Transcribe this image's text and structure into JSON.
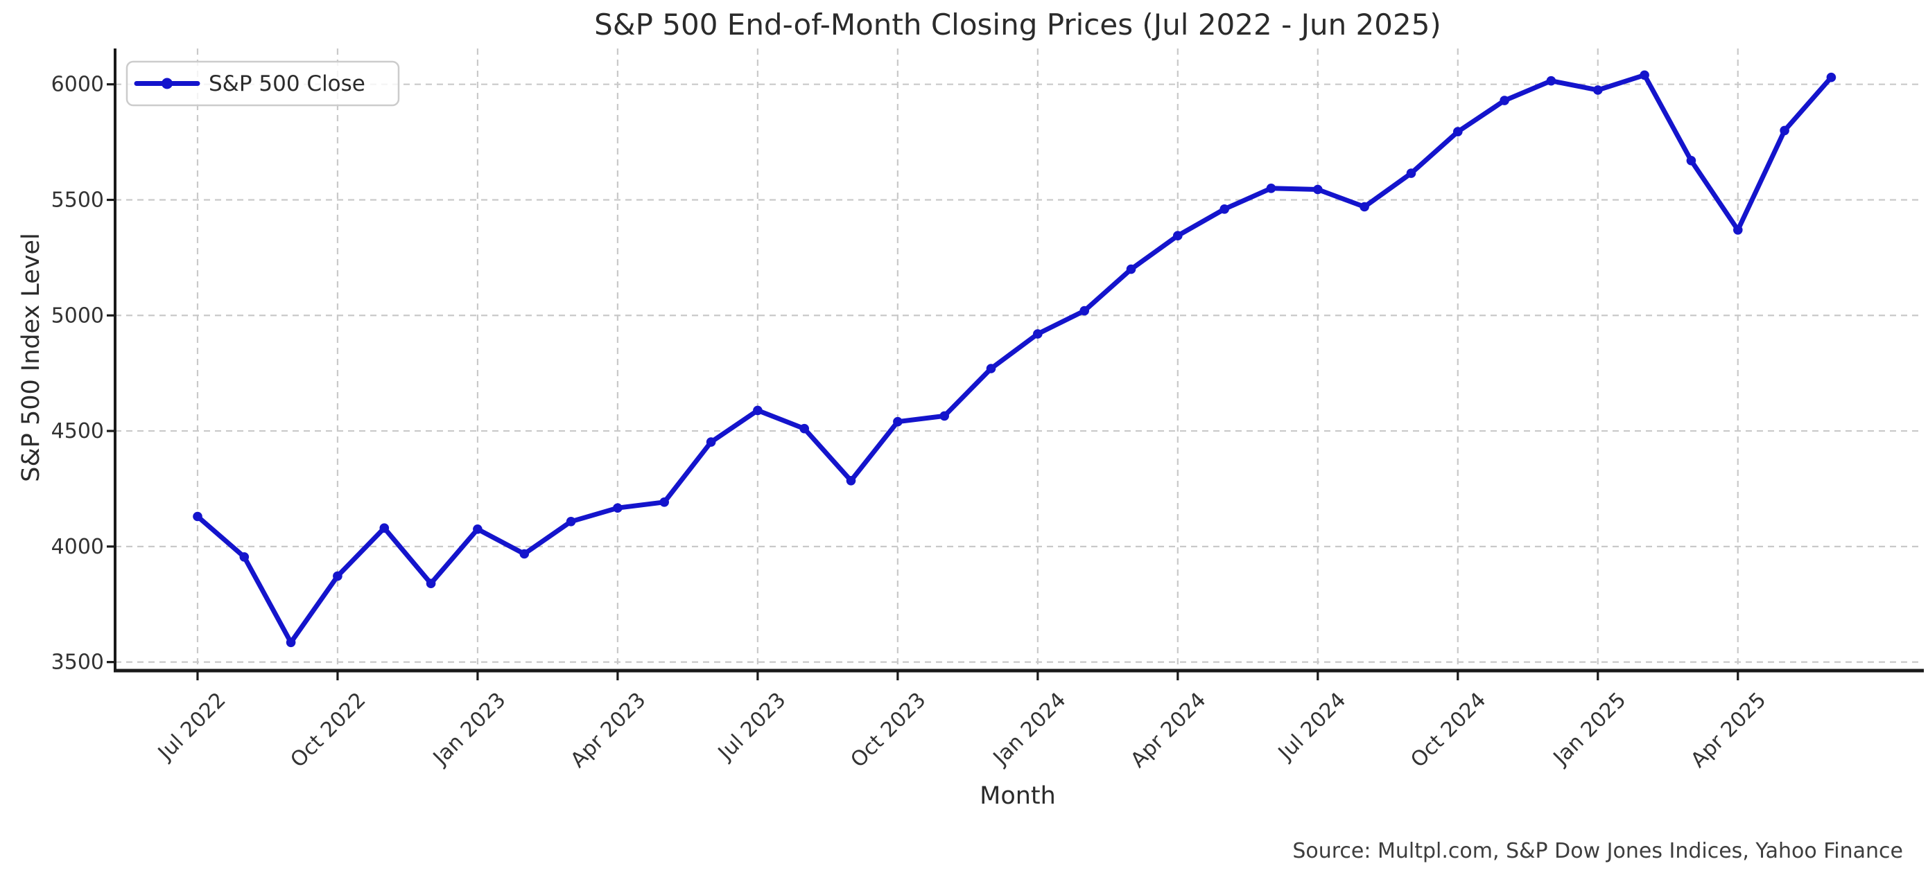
{
  "page": {
    "background": "#ffffff"
  },
  "chart_data": {
    "type": "line",
    "title": "S&P 500 End-of-Month Closing Prices (Jul 2022 - Jun 2025)",
    "xlabel": "Month",
    "ylabel": "S&P 500 Index Level",
    "source_note": "Source: Multpl.com, S&P Dow Jones Indices, Yahoo Finance",
    "legend": {
      "position": "upper-left",
      "label": "S&P 500 Close"
    },
    "categories": [
      "Jul 2022",
      "Aug 2022",
      "Sep 2022",
      "Oct 2022",
      "Nov 2022",
      "Dec 2022",
      "Jan 2023",
      "Feb 2023",
      "Mar 2023",
      "Apr 2023",
      "May 2023",
      "Jun 2023",
      "Jul 2023",
      "Aug 2023",
      "Sep 2023",
      "Oct 2023",
      "Nov 2023",
      "Dec 2023",
      "Jan 2024",
      "Feb 2024",
      "Mar 2024",
      "Apr 2024",
      "May 2024",
      "Jun 2024",
      "Jul 2024",
      "Aug 2024",
      "Sep 2024",
      "Oct 2024",
      "Nov 2024",
      "Dec 2024",
      "Jan 2025",
      "Feb 2025",
      "Mar 2025",
      "Apr 2025",
      "May 2025",
      "Jun 2025"
    ],
    "series": [
      {
        "name": "S&P 500 Close",
        "color": "#1414cc",
        "marker": "circle",
        "values": [
          4130,
          3955,
          3585,
          3872,
          4080,
          3840,
          4075,
          3968,
          4108,
          4167,
          4192,
          4452,
          4589,
          4510,
          4285,
          4540,
          4565,
          4770,
          4920,
          5020,
          5200,
          5345,
          5460,
          5550,
          5545,
          5470,
          5615,
          5795,
          5930,
          6015,
          5975,
          6040,
          5670,
          5370,
          5800,
          6030
        ]
      }
    ],
    "x_tick_labels": [
      "Jul 2022",
      "Oct 2022",
      "Jan 2023",
      "Apr 2023",
      "Jul 2023",
      "Oct 2023",
      "Jan 2024",
      "Apr 2024",
      "Jul 2024",
      "Oct 2024",
      "Jan 2025",
      "Apr 2025"
    ],
    "x_tick_step": 3,
    "y_ticks": [
      "3500",
      "4000",
      "4500",
      "5000",
      "5500",
      "6000"
    ],
    "ylim": [
      3463,
      6155
    ],
    "grid": true,
    "grid_on": "both",
    "grid_color": "#c9c9c9",
    "axis_color": "#1a1a1a",
    "text_color": "#2b2b2b",
    "tick_label_color": "#333333",
    "source_color": "#3d3d3d"
  }
}
